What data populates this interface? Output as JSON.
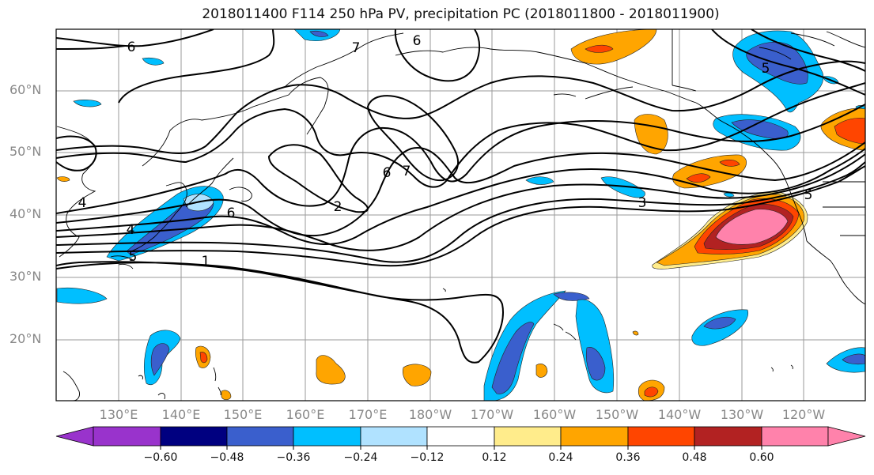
{
  "title": "2018011400 F114 250 hPa PV, precipitation PC (2018011800 - 2018011900)",
  "latitude_labels": [
    "60°N",
    "50°N",
    "40°N",
    "30°N",
    "20°N"
  ],
  "longitude_labels": [
    "130°E",
    "140°E",
    "150°E",
    "160°E",
    "170°E",
    "180°W",
    "170°W",
    "160°W",
    "150°W",
    "140°W",
    "130°W",
    "120°W"
  ],
  "contour_labels": [
    "6",
    "7",
    "6",
    "5",
    "4",
    "4",
    "6",
    "6",
    "7",
    "2",
    "3",
    "1",
    "5",
    "5"
  ],
  "colorbar": {
    "tick_labels": [
      "−0.60",
      "−0.48",
      "−0.36",
      "−0.24",
      "−0.12",
      "0.12",
      "0.24",
      "0.36",
      "0.48",
      "0.60"
    ],
    "colors": [
      "#9933cc",
      "#000080",
      "#3a5fcd",
      "#00bfff",
      "#b0e2ff",
      "#ffffff",
      "#ffec8b",
      "#ffa500",
      "#ff4500",
      "#b22222",
      "#ff82ab"
    ]
  }
}
